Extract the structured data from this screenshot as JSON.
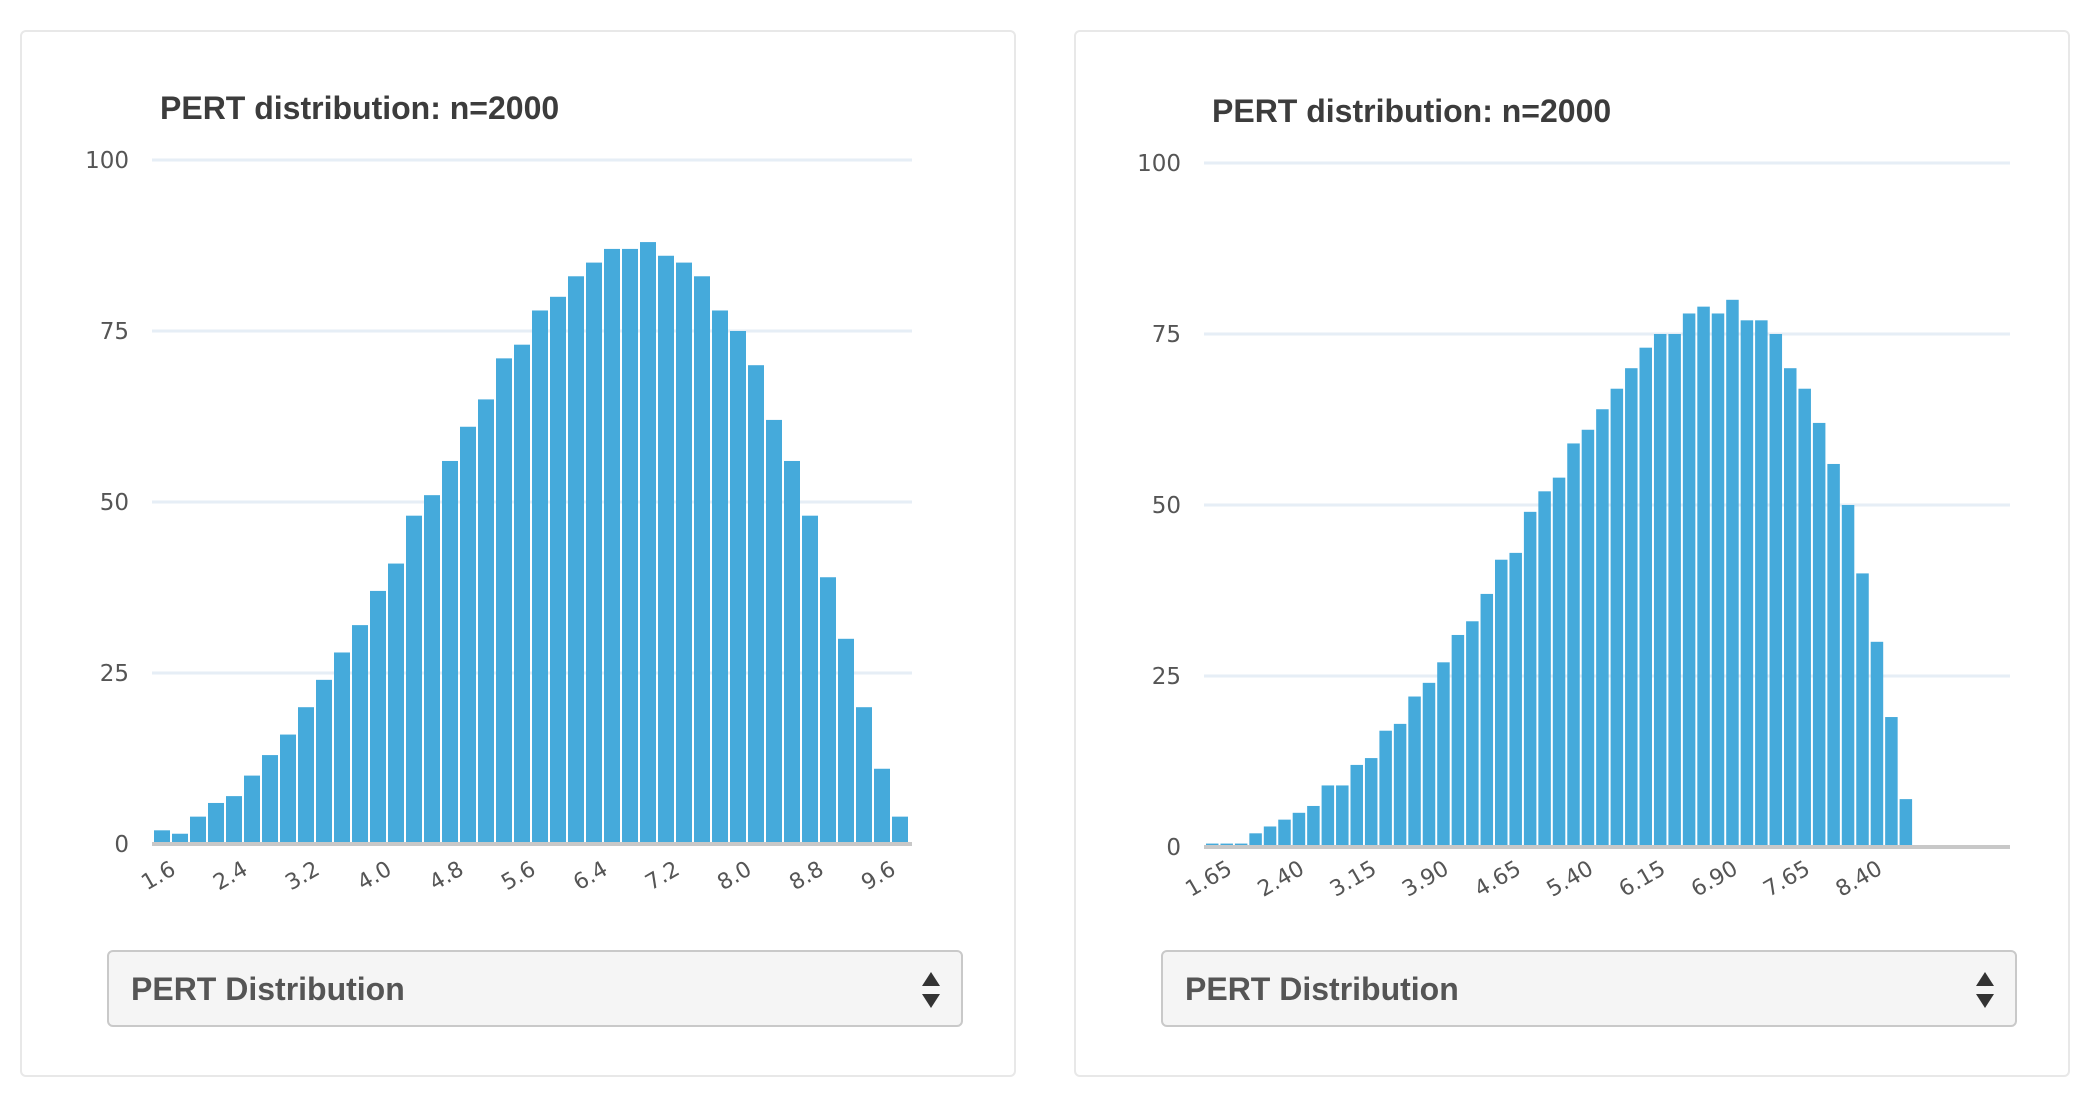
{
  "panels": [
    {
      "title": "PERT distribution: n=2000",
      "select": {
        "selected": "PERT Distribution",
        "icon": "up-down-arrows-icon"
      }
    },
    {
      "title": "PERT distribution: n=2000",
      "select": {
        "selected": "PERT Distribution",
        "icon": "up-down-arrows-icon"
      }
    }
  ],
  "colors": {
    "bar": "#45aadb",
    "grid": "#e6eef6",
    "baseline": "#c8c8c8",
    "text": "#555555"
  },
  "chart_data": [
    {
      "type": "bar",
      "title": "PERT distribution: n=2000",
      "xlabel": "",
      "ylabel": "",
      "ylim": [
        0,
        100
      ],
      "yticks": [
        0,
        25,
        50,
        75,
        100
      ],
      "grid": true,
      "xtick_labels": [
        "1.6",
        "2.4",
        "3.2",
        "4.0",
        "4.8",
        "5.6",
        "6.4",
        "7.2",
        "8.0",
        "8.8",
        "9.6"
      ],
      "xtick_every": 4,
      "values": [
        2,
        1.5,
        4,
        6,
        7,
        10,
        13,
        16,
        20,
        24,
        28,
        32,
        37,
        41,
        48,
        51,
        56,
        61,
        65,
        71,
        73,
        78,
        80,
        83,
        85,
        87,
        87,
        88,
        86,
        85,
        83,
        78,
        75,
        70,
        62,
        56,
        48,
        39,
        30,
        20,
        11,
        4
      ]
    },
    {
      "type": "bar",
      "title": "PERT distribution: n=2000",
      "xlabel": "",
      "ylabel": "",
      "ylim": [
        0,
        100
      ],
      "yticks": [
        0,
        25,
        50,
        75,
        100
      ],
      "grid": true,
      "xtick_labels": [
        "1.65",
        "2.40",
        "3.15",
        "3.90",
        "4.65",
        "5.40",
        "6.15",
        "6.90",
        "7.65",
        "8.40"
      ],
      "xtick_every": 5,
      "values": [
        0.5,
        0.5,
        0.5,
        2,
        3,
        4,
        5,
        6,
        9,
        9,
        12,
        13,
        17,
        18,
        22,
        24,
        27,
        31,
        33,
        37,
        42,
        43,
        49,
        52,
        54,
        59,
        61,
        64,
        67,
        70,
        73,
        75,
        75,
        78,
        79,
        78,
        80,
        77,
        77,
        75,
        70,
        67,
        62,
        56,
        50,
        40,
        30,
        19,
        7
      ]
    }
  ]
}
